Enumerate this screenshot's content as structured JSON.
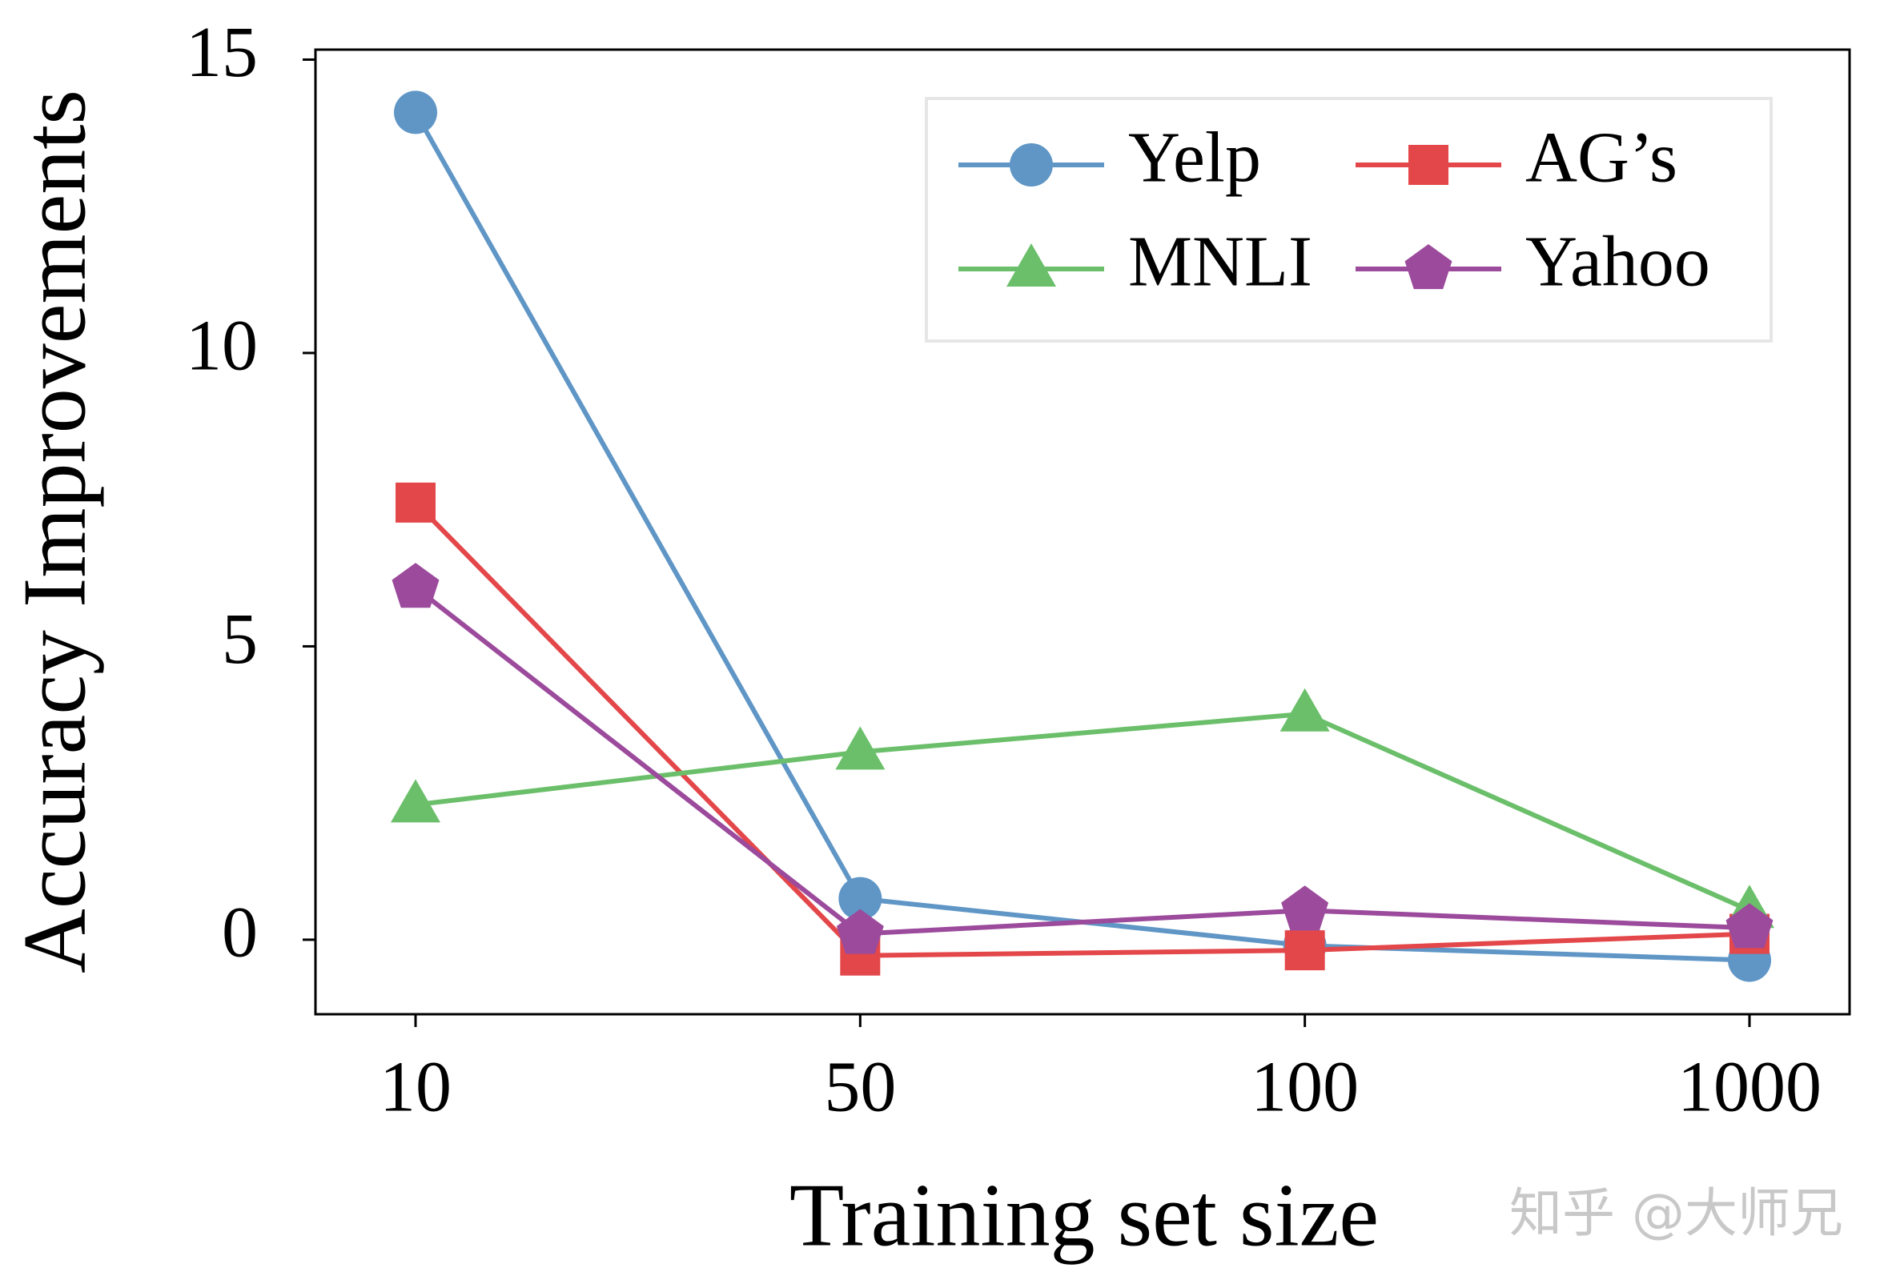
{
  "chart_data": {
    "type": "line",
    "xlabel": "Training set size",
    "ylabel": "Accuracy Improvements",
    "categories": [
      "10",
      "50",
      "100",
      "1000"
    ],
    "series": [
      {
        "name": "Yelp",
        "color": "#5f96c6",
        "marker": "circle",
        "values": [
          14.1,
          0.7,
          -0.1,
          -0.35
        ]
      },
      {
        "name": "AG’s",
        "color": "#e3474a",
        "marker": "square",
        "values": [
          7.45,
          -0.27,
          -0.18,
          0.1
        ]
      },
      {
        "name": "MNLI",
        "color": "#6bbf6a",
        "marker": "triangle",
        "values": [
          2.3,
          3.2,
          3.85,
          0.5
        ]
      },
      {
        "name": "Yahoo",
        "color": "#9c4a9c",
        "marker": "pentagon",
        "values": [
          6.0,
          0.1,
          0.5,
          0.2
        ]
      }
    ],
    "ylim": [
      -1.27,
      15.17
    ],
    "yticks": [
      0,
      5,
      10,
      15
    ],
    "grid": false,
    "legend": "upper right",
    "watermark": "知乎 @大师兄"
  }
}
